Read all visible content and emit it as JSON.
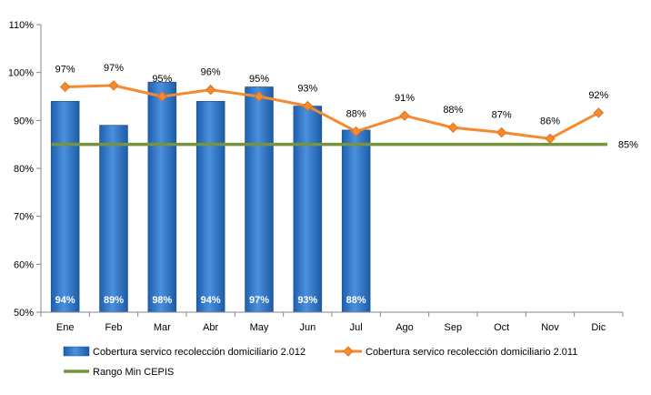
{
  "chart_data": {
    "type": "bar",
    "categories": [
      "Ene",
      "Feb",
      "Mar",
      "Abr",
      "May",
      "Jun",
      "Jul",
      "Ago",
      "Sep",
      "Oct",
      "Nov",
      "Dic"
    ],
    "ylim": [
      50,
      110
    ],
    "yticks": [
      50,
      60,
      70,
      80,
      90,
      100,
      110
    ],
    "ytick_suffix": "%",
    "grid": false,
    "legend_position": "bottom",
    "series": [
      {
        "name": "Cobertura servico recolección domiciliario 2.012",
        "kind": "bar",
        "color": "#2E75C8",
        "values": [
          94,
          89,
          98,
          94,
          97,
          93,
          88,
          null,
          null,
          null,
          null,
          null
        ],
        "labels": [
          "94%",
          "89%",
          "98%",
          "94%",
          "97%",
          "93%",
          "88%",
          "",
          "",
          "",
          "",
          ""
        ]
      },
      {
        "name": "Cobertura servico recolección domiciliario 2.011",
        "kind": "line",
        "color": "#F58A2E",
        "marker": "diamond",
        "values": [
          97,
          97.3,
          95,
          96.4,
          95,
          93,
          87.7,
          91,
          88.5,
          87.5,
          86.2,
          91.6
        ],
        "labels": [
          "97%",
          "97%",
          "95%",
          "96%",
          "95%",
          "93%",
          "88%",
          "91%",
          "88%",
          "87%",
          "86%",
          "92%"
        ]
      },
      {
        "name": "Rango Min CEPIS",
        "kind": "line",
        "color": "#77933C",
        "values": [
          85,
          85,
          85,
          85,
          85,
          85,
          85,
          85,
          85,
          85,
          85,
          85
        ],
        "end_label": "85%"
      }
    ]
  }
}
